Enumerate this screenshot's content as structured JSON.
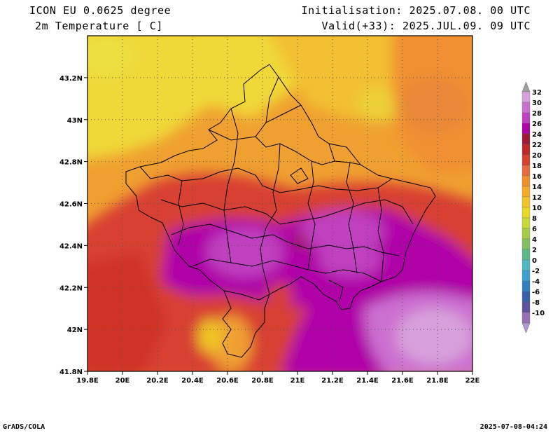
{
  "header": {
    "model": "ICON EU 0.0625 degree",
    "variable": "2m Temperature [ C]",
    "initialisation": "Initialisation: 2025.07.08. 00 UTC",
    "valid": "Valid(+33): 2025.JUL.09. 09 UTC"
  },
  "map": {
    "x_ticks": [
      "19.8E",
      "20E",
      "20.2E",
      "20.4E",
      "20.6E",
      "20.8E",
      "21E",
      "21.2E",
      "21.4E",
      "21.6E",
      "21.8E",
      "22E"
    ],
    "y_ticks": [
      "43.2N",
      "43N",
      "42.8N",
      "42.6N",
      "42.4N",
      "42.2N",
      "42N",
      "41.8N"
    ],
    "lon_range": [
      19.8,
      22.0
    ],
    "lat_range": [
      41.8,
      43.4
    ]
  },
  "colorbar": {
    "labels": [
      "32",
      "30",
      "28",
      "26",
      "24",
      "22",
      "20",
      "18",
      "16",
      "14",
      "12",
      "10",
      "8",
      "6",
      "4",
      "2",
      "0",
      "-2",
      "-4",
      "-6",
      "-8",
      "-10"
    ],
    "colors": [
      "#d8a0dc",
      "#cc70d0",
      "#c040c0",
      "#b000a8",
      "#9c1c38",
      "#c02828",
      "#d84030",
      "#e86c3c",
      "#f0902c",
      "#f4ac28",
      "#f0c428",
      "#e8d828",
      "#c8d838",
      "#a8cc48",
      "#80c060",
      "#60b888",
      "#50b8c0",
      "#40a0d0",
      "#3080c0",
      "#3860a8",
      "#6050a0",
      "#9870b8"
    ],
    "top_arrow_color": "#a0a0a0",
    "bottom_arrow_color": "#b098d0"
  },
  "footer": {
    "left": "GrADS/COLA",
    "right": "2025-07-08-04:24"
  }
}
